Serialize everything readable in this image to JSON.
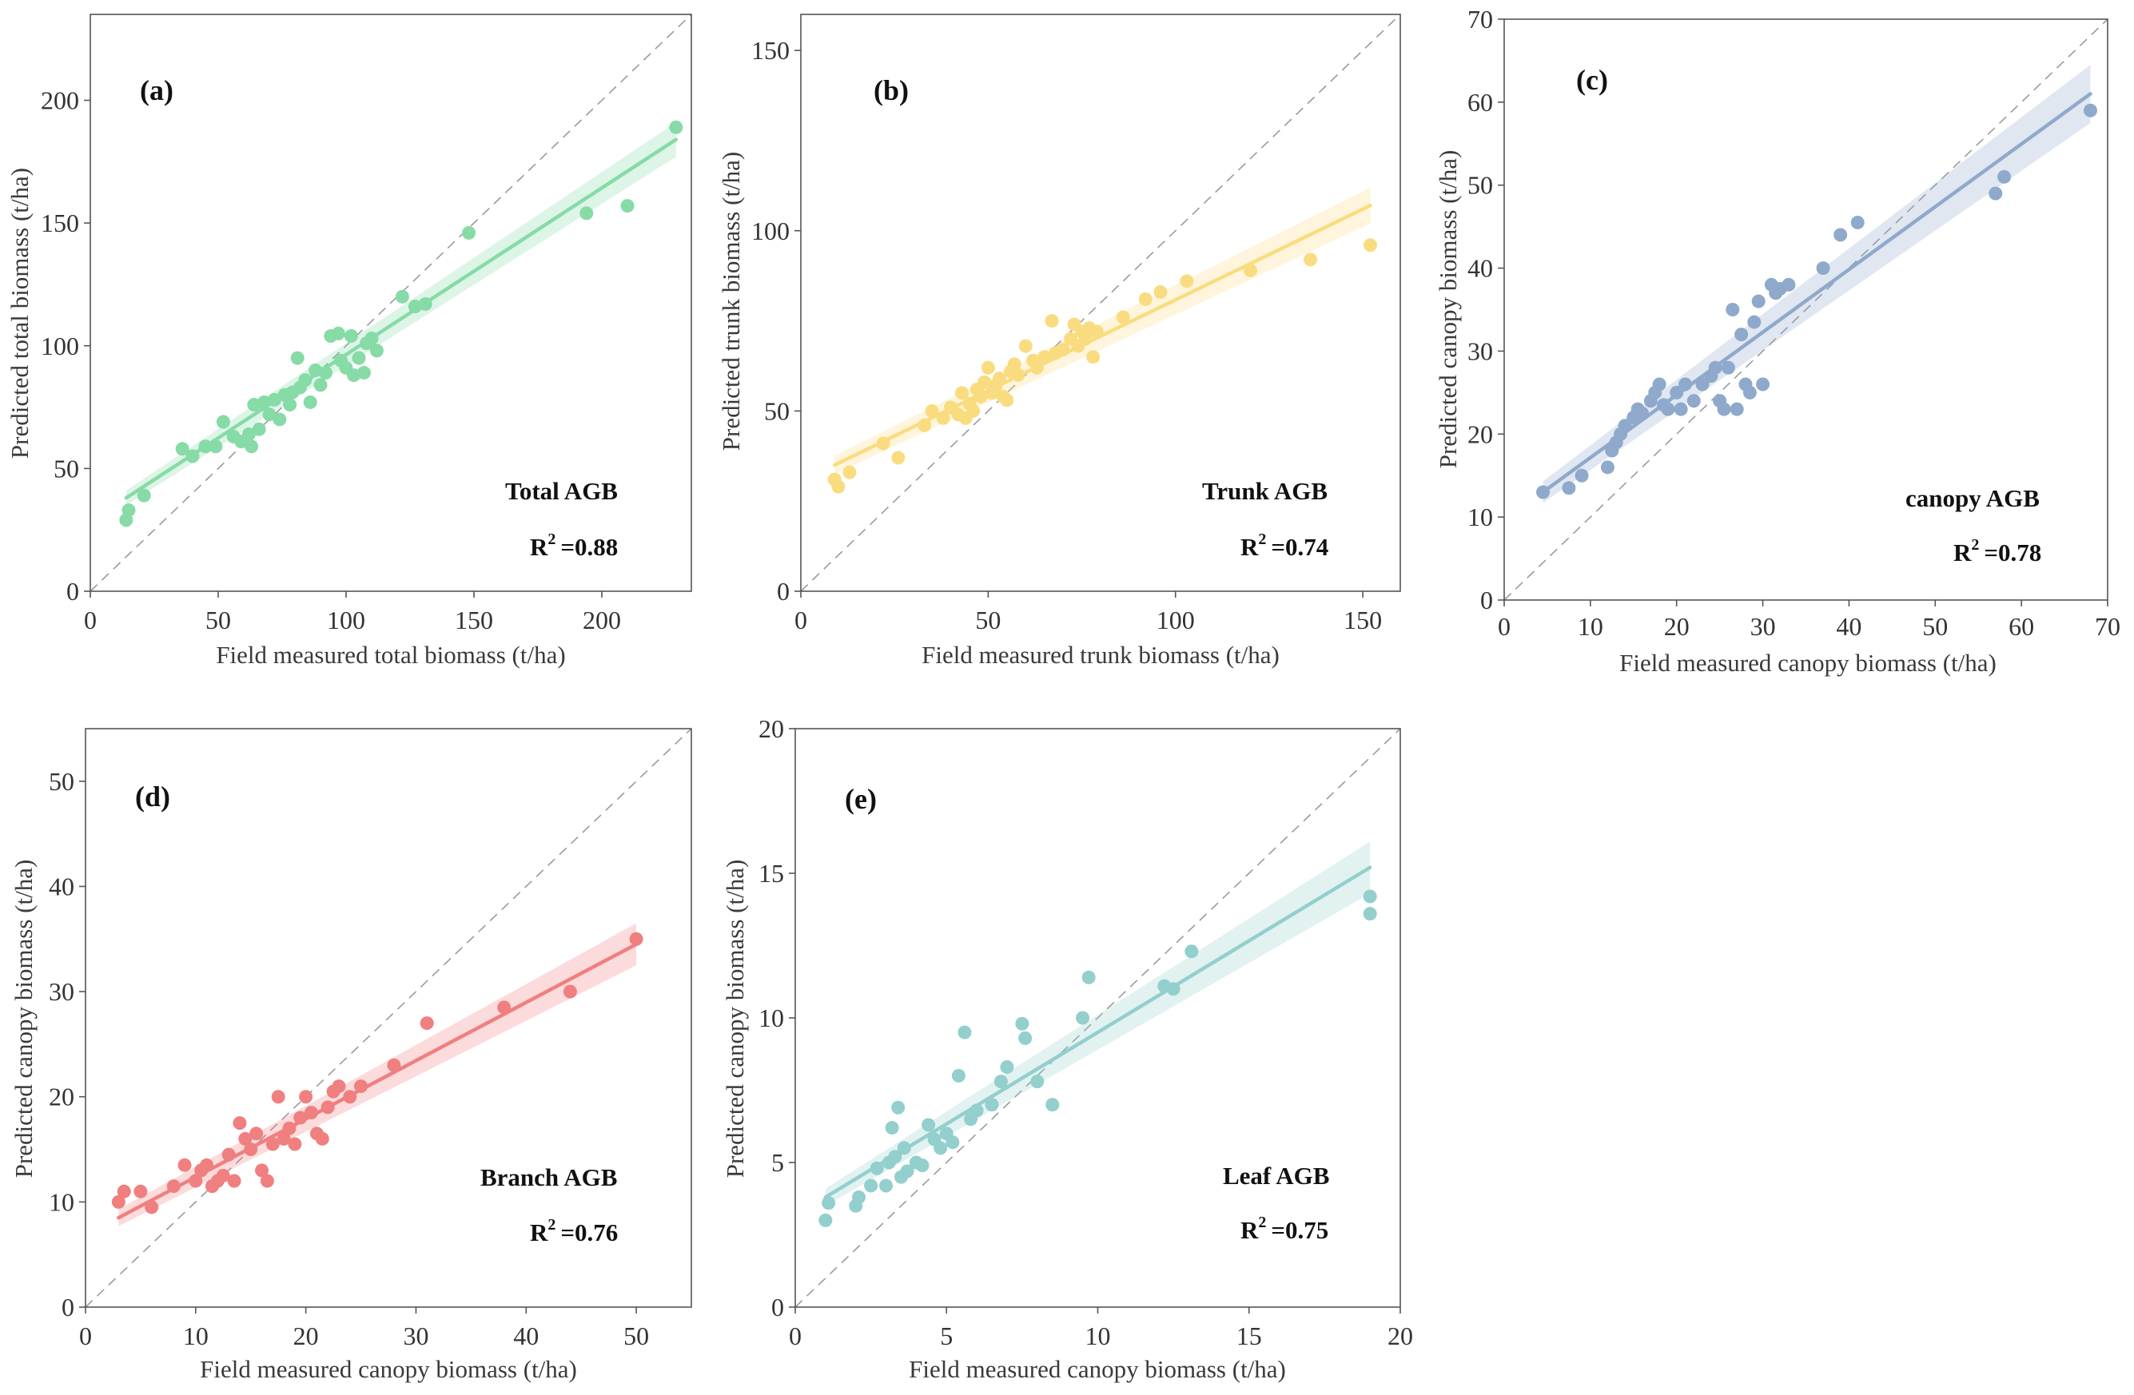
{
  "figure": {
    "title": ""
  },
  "chart_data": [
    {
      "type": "scatter",
      "panel": "(a)",
      "title": "Total AGB",
      "r2": "=0.88",
      "xlabel": "Field measured total biomass (t/ha)",
      "ylabel": "Predicted total biomass (t/ha)",
      "xlim": [
        0,
        235
      ],
      "ylim": [
        0,
        235
      ],
      "xticks": [
        0,
        50,
        100,
        150,
        200
      ],
      "yticks": [
        0,
        50,
        100,
        150,
        200
      ],
      "color": "#86dba6",
      "fit": {
        "x0": 14,
        "y0": 38,
        "x1": 229,
        "y1": 184,
        "band0": 3,
        "band1": 7
      },
      "points": [
        [
          14,
          29
        ],
        [
          15,
          33
        ],
        [
          21,
          39
        ],
        [
          36,
          58
        ],
        [
          40,
          55
        ],
        [
          45,
          59
        ],
        [
          49,
          59
        ],
        [
          52,
          69
        ],
        [
          56,
          63
        ],
        [
          59,
          61
        ],
        [
          62,
          64
        ],
        [
          63,
          59
        ],
        [
          64,
          76
        ],
        [
          66,
          66
        ],
        [
          68,
          77
        ],
        [
          70,
          72
        ],
        [
          72,
          78
        ],
        [
          74,
          70
        ],
        [
          76,
          80
        ],
        [
          78,
          76
        ],
        [
          79,
          81
        ],
        [
          81,
          95
        ],
        [
          82,
          83
        ],
        [
          84,
          86
        ],
        [
          86,
          77
        ],
        [
          88,
          90
        ],
        [
          90,
          84
        ],
        [
          92,
          89
        ],
        [
          94,
          104
        ],
        [
          97,
          105
        ],
        [
          98,
          94
        ],
        [
          100,
          91
        ],
        [
          102,
          104
        ],
        [
          103,
          88
        ],
        [
          105,
          95
        ],
        [
          107,
          89
        ],
        [
          108,
          101
        ],
        [
          110,
          103
        ],
        [
          112,
          98
        ],
        [
          122,
          120
        ],
        [
          127,
          116
        ],
        [
          131,
          117
        ],
        [
          148,
          146
        ],
        [
          194,
          154
        ],
        [
          210,
          157
        ],
        [
          229,
          189
        ]
      ]
    },
    {
      "type": "scatter",
      "panel": "(b)",
      "title": "Trunk AGB",
      "r2": "=0.74",
      "xlabel": "Field measured trunk biomass (t/ha)",
      "ylabel": "Predicted trunk biomass (t/ha)",
      "xlim": [
        0,
        160
      ],
      "ylim": [
        0,
        160
      ],
      "xticks": [
        0,
        50,
        100,
        150
      ],
      "yticks": [
        0,
        50,
        100,
        150
      ],
      "color": "#fadc80",
      "fit": {
        "x0": 9,
        "y0": 35,
        "x1": 152,
        "y1": 107,
        "band0": 2.5,
        "band1": 5
      },
      "points": [
        [
          9,
          31
        ],
        [
          10,
          29
        ],
        [
          13,
          33
        ],
        [
          22,
          41
        ],
        [
          26,
          37
        ],
        [
          33,
          46
        ],
        [
          35,
          50
        ],
        [
          38,
          48
        ],
        [
          40,
          51
        ],
        [
          42,
          49
        ],
        [
          43,
          55
        ],
        [
          44,
          48
        ],
        [
          45,
          52
        ],
        [
          46,
          50
        ],
        [
          47,
          56
        ],
        [
          48,
          54
        ],
        [
          49,
          58
        ],
        [
          50,
          62
        ],
        [
          51,
          55
        ],
        [
          52,
          57
        ],
        [
          53,
          59
        ],
        [
          54,
          54
        ],
        [
          55,
          53
        ],
        [
          56,
          61
        ],
        [
          57,
          63
        ],
        [
          58,
          60
        ],
        [
          60,
          68
        ],
        [
          62,
          64
        ],
        [
          63,
          62
        ],
        [
          65,
          65
        ],
        [
          67,
          75
        ],
        [
          68,
          66
        ],
        [
          70,
          67
        ],
        [
          72,
          70
        ],
        [
          73,
          74
        ],
        [
          74,
          68
        ],
        [
          75,
          72
        ],
        [
          76,
          70
        ],
        [
          77,
          73
        ],
        [
          78,
          65
        ],
        [
          79,
          72
        ],
        [
          86,
          76
        ],
        [
          92,
          81
        ],
        [
          96,
          83
        ],
        [
          103,
          86
        ],
        [
          120,
          89
        ],
        [
          136,
          92
        ],
        [
          152,
          96
        ]
      ]
    },
    {
      "type": "scatter",
      "panel": "(c)",
      "title": "canopy AGB",
      "r2": "=0.78",
      "xlabel": "Field measured canopy biomass (t/ha)",
      "ylabel": "Predicted canopy biomass (t/ha)",
      "xlim": [
        0,
        70
      ],
      "ylim": [
        0,
        70
      ],
      "xticks": [
        0,
        10,
        20,
        30,
        40,
        50,
        60,
        70
      ],
      "yticks": [
        0,
        10,
        20,
        30,
        40,
        50,
        60,
        70
      ],
      "color": "#8ea9cb",
      "fit": {
        "x0": 4.5,
        "y0": 13,
        "x1": 68,
        "y1": 61,
        "band0": 1.3,
        "band1": 3.5
      },
      "points": [
        [
          4.5,
          13
        ],
        [
          7.5,
          13.5
        ],
        [
          9,
          15
        ],
        [
          12,
          16
        ],
        [
          12.5,
          18
        ],
        [
          13,
          19
        ],
        [
          13.5,
          20
        ],
        [
          14,
          21
        ],
        [
          15,
          22
        ],
        [
          15.5,
          23
        ],
        [
          16,
          22.5
        ],
        [
          17,
          24
        ],
        [
          17.5,
          25
        ],
        [
          18,
          26
        ],
        [
          18.5,
          23.5
        ],
        [
          19,
          23
        ],
        [
          20,
          25
        ],
        [
          20.5,
          23
        ],
        [
          21,
          26
        ],
        [
          22,
          24
        ],
        [
          23,
          26
        ],
        [
          24,
          27
        ],
        [
          24.5,
          28
        ],
        [
          25,
          24
        ],
        [
          25.5,
          23
        ],
        [
          26,
          28
        ],
        [
          26.5,
          35
        ],
        [
          27,
          23
        ],
        [
          27.5,
          32
        ],
        [
          28,
          26
        ],
        [
          28.5,
          25
        ],
        [
          29,
          33.5
        ],
        [
          29.5,
          36
        ],
        [
          30,
          26
        ],
        [
          31,
          38
        ],
        [
          31.5,
          37
        ],
        [
          32,
          37.5
        ],
        [
          33,
          38
        ],
        [
          37,
          40
        ],
        [
          39,
          44
        ],
        [
          41,
          45.5
        ],
        [
          57,
          49
        ],
        [
          58,
          51
        ],
        [
          68,
          59
        ]
      ]
    },
    {
      "type": "scatter",
      "panel": "(d)",
      "title": "Branch AGB",
      "r2": "=0.76",
      "xlabel": "Field measured canopy biomass (t/ha)",
      "ylabel": "Predicted canopy biomass (t/ha)",
      "xlim": [
        0,
        55
      ],
      "ylim": [
        0,
        55
      ],
      "xticks": [
        0,
        10,
        20,
        30,
        40,
        50
      ],
      "yticks": [
        0,
        10,
        20,
        30,
        40,
        50
      ],
      "color": "#f07f7f",
      "fit": {
        "x0": 3,
        "y0": 8.5,
        "x1": 50,
        "y1": 34.5,
        "band0": 0.8,
        "band1": 2
      },
      "points": [
        [
          3,
          10
        ],
        [
          3.5,
          11
        ],
        [
          5,
          11
        ],
        [
          6,
          9.5
        ],
        [
          8,
          11.5
        ],
        [
          9,
          13.5
        ],
        [
          10,
          12
        ],
        [
          10.5,
          13
        ],
        [
          11,
          13.5
        ],
        [
          11.5,
          11.5
        ],
        [
          12,
          12
        ],
        [
          12.5,
          12.5
        ],
        [
          13,
          14.5
        ],
        [
          13.5,
          12
        ],
        [
          14,
          17.5
        ],
        [
          14.5,
          16
        ],
        [
          15,
          15
        ],
        [
          15.5,
          16.5
        ],
        [
          16,
          13
        ],
        [
          16.5,
          12
        ],
        [
          17,
          15.5
        ],
        [
          17.5,
          20
        ],
        [
          18,
          16
        ],
        [
          18.5,
          17
        ],
        [
          19,
          15.5
        ],
        [
          19.5,
          18
        ],
        [
          20,
          20
        ],
        [
          20.5,
          18.5
        ],
        [
          21,
          16.5
        ],
        [
          21.5,
          16
        ],
        [
          22,
          19
        ],
        [
          22.5,
          20.5
        ],
        [
          23,
          21
        ],
        [
          24,
          20
        ],
        [
          25,
          21
        ],
        [
          28,
          23
        ],
        [
          31,
          27
        ],
        [
          38,
          28.5
        ],
        [
          44,
          30
        ],
        [
          50,
          35
        ]
      ]
    },
    {
      "type": "scatter",
      "panel": "(e)",
      "title": "Leaf AGB",
      "r2": "=0.75",
      "xlabel": "Field measured canopy biomass (t/ha)",
      "ylabel": "Predicted canopy biomass (t/ha)",
      "xlim": [
        0,
        20
      ],
      "ylim": [
        0,
        20
      ],
      "xticks": [
        0,
        5,
        10,
        15,
        20
      ],
      "yticks": [
        0,
        5,
        10,
        15,
        20
      ],
      "color": "#93cfcc",
      "fit": {
        "x0": 1,
        "y0": 3.8,
        "x1": 19,
        "y1": 15.2,
        "band0": 0.3,
        "band1": 0.9
      },
      "points": [
        [
          1,
          3
        ],
        [
          1.1,
          3.6
        ],
        [
          2,
          3.5
        ],
        [
          2.1,
          3.8
        ],
        [
          2.5,
          4.2
        ],
        [
          2.7,
          4.8
        ],
        [
          3,
          4.2
        ],
        [
          3.1,
          5
        ],
        [
          3.2,
          6.2
        ],
        [
          3.3,
          5.2
        ],
        [
          3.4,
          6.9
        ],
        [
          3.5,
          4.5
        ],
        [
          3.6,
          5.5
        ],
        [
          3.7,
          4.7
        ],
        [
          4,
          5
        ],
        [
          4.2,
          4.9
        ],
        [
          4.4,
          6.3
        ],
        [
          4.6,
          5.8
        ],
        [
          4.8,
          5.5
        ],
        [
          5,
          6
        ],
        [
          5.2,
          5.7
        ],
        [
          5.4,
          8
        ],
        [
          5.6,
          9.5
        ],
        [
          5.8,
          6.5
        ],
        [
          6,
          6.8
        ],
        [
          6.5,
          7
        ],
        [
          6.8,
          7.8
        ],
        [
          7,
          8.3
        ],
        [
          7.5,
          9.8
        ],
        [
          7.6,
          9.3
        ],
        [
          8,
          7.8
        ],
        [
          8.5,
          7
        ],
        [
          9.5,
          10
        ],
        [
          9.7,
          11.4
        ],
        [
          12.2,
          11.1
        ],
        [
          12.5,
          11
        ],
        [
          13.1,
          12.3
        ],
        [
          19,
          14.2
        ],
        [
          19,
          13.6
        ]
      ]
    }
  ]
}
